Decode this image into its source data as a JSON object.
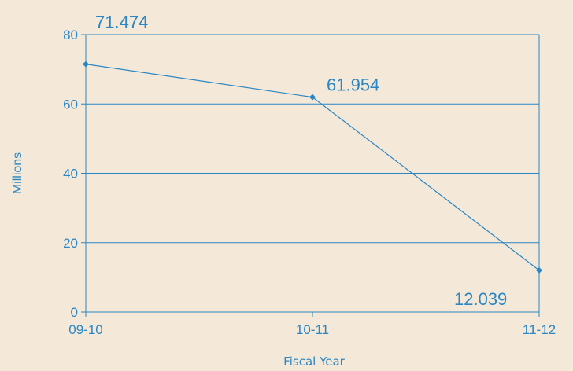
{
  "chart_data": {
    "type": "line",
    "title": "",
    "xlabel": "Fiscal Year",
    "ylabel": "Millions",
    "categories": [
      "09-10",
      "10-11",
      "11-12"
    ],
    "series": [
      {
        "values": [
          71.474,
          61.954,
          12.039
        ]
      }
    ],
    "data_labels": [
      "71.474",
      "61.954",
      "12.039"
    ],
    "yticks": [
      "0",
      "20",
      "40",
      "60",
      "80"
    ],
    "ylim": [
      0,
      80
    ],
    "grid": "horizontal",
    "legend": "none"
  },
  "colors": {
    "background": "#f4e9d8",
    "series": "#2a86c4",
    "text": "#2a86c4"
  }
}
